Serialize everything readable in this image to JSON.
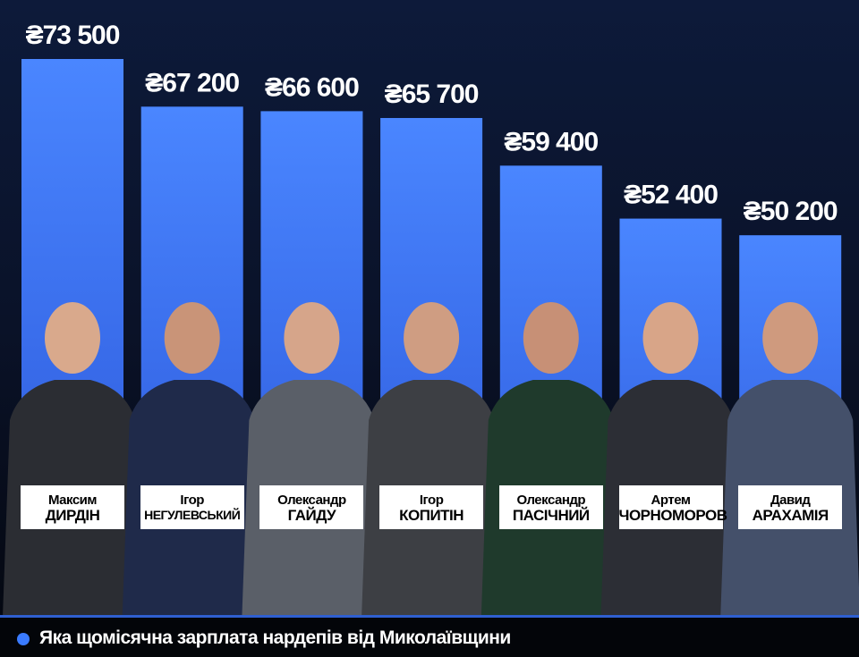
{
  "chart_data": {
    "type": "bar",
    "title": "Яка щомісячна зарплата нардепів від Миколаївщини",
    "currency_symbol": "₴",
    "categories": [
      "Максим ДИРДІН",
      "Ігор НЕГУЛЕВСЬКИЙ",
      "Олександр ГАЙДУ",
      "Ігор КОПИТІН",
      "Олександр ПАСІЧНИЙ",
      "Артем ЧОРНОМОРОВ",
      "Давид АРАХАМІЯ"
    ],
    "values": [
      73500,
      67200,
      66600,
      65700,
      59400,
      52400,
      50200
    ],
    "value_labels": [
      "₴73 500",
      "₴67 200",
      "₴66 600",
      "₴65 700",
      "₴59 400",
      "₴52 400",
      "₴50 200"
    ],
    "names": [
      {
        "first": "Максим",
        "last": "ДИРДІН"
      },
      {
        "first": "Ігор",
        "last": "НЕГУЛЕВСЬКИЙ"
      },
      {
        "first": "Олександр",
        "last": "ГАЙДУ"
      },
      {
        "first": "Ігор",
        "last": "КОПИТІН"
      },
      {
        "first": "Олександр",
        "last": "ПАСІЧНИЙ"
      },
      {
        "first": "Артем",
        "last": "ЧОРНОМОРОВ"
      },
      {
        "first": "Давид",
        "last": "АРАХАМІЯ"
      }
    ],
    "ylim": [
      0,
      73500
    ],
    "grid": false,
    "colors": {
      "bar_top": "#4a86ff",
      "bar_bottom": "#2a55d8",
      "accent": "#3a7bff"
    }
  }
}
